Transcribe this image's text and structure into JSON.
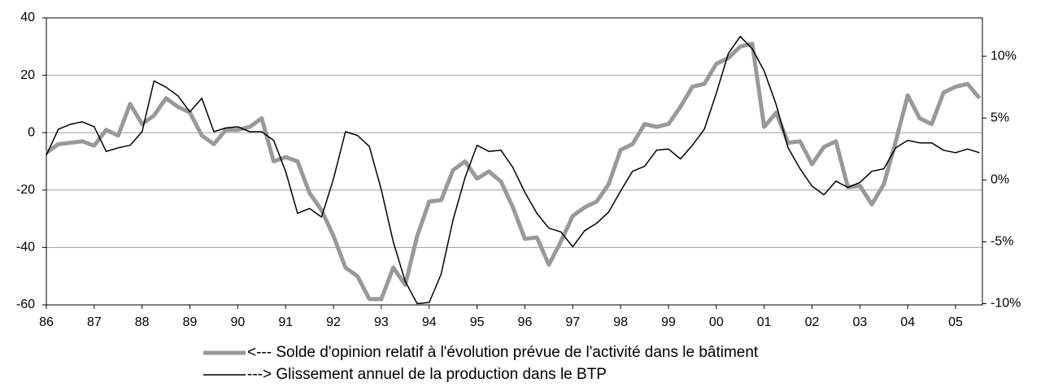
{
  "chart_data": {
    "type": "line",
    "x": [
      1986,
      1986.25,
      1986.5,
      1986.75,
      1987,
      1987.25,
      1987.5,
      1987.75,
      1988,
      1988.25,
      1988.5,
      1988.75,
      1989,
      1989.25,
      1989.5,
      1989.75,
      1990,
      1990.25,
      1990.5,
      1990.75,
      1991,
      1991.25,
      1991.5,
      1991.75,
      1992,
      1992.25,
      1992.5,
      1992.75,
      1993,
      1993.25,
      1993.5,
      1993.75,
      1994,
      1994.25,
      1994.5,
      1994.75,
      1995,
      1995.25,
      1995.5,
      1995.75,
      1996,
      1996.25,
      1996.5,
      1996.75,
      1997,
      1997.25,
      1997.5,
      1997.75,
      1998,
      1998.25,
      1998.5,
      1998.75,
      1999,
      1999.25,
      1999.5,
      1999.75,
      2000,
      2000.25,
      2000.5,
      2000.75,
      2001,
      2001.25,
      2001.5,
      2001.75,
      2002,
      2002.25,
      2002.5,
      2002.75,
      2003,
      2003.25,
      2003.5,
      2003.75,
      2004,
      2004.25,
      2004.5,
      2004.75,
      2005,
      2005.25,
      2005.5
    ],
    "series": [
      {
        "name": "<--- Solde d'opinion relatif à l'évolution prévue de l'activité dans le bâtiment",
        "color": "#999999",
        "axis": "y",
        "values": [
          -7,
          -4,
          -3.5,
          -3,
          -4.5,
          1,
          -1,
          10,
          3,
          6,
          12,
          9,
          7,
          -1,
          -4,
          1,
          1,
          2,
          5,
          -10,
          -8.5,
          -10,
          -21,
          -27,
          -36,
          -47,
          -50,
          -58,
          -58,
          -47,
          -53,
          -36,
          -24,
          -23.5,
          -13,
          -10,
          -16,
          -13.5,
          -17,
          -26,
          -37,
          -36.5,
          -46,
          -38,
          -29,
          -26,
          -24,
          -18,
          -6,
          -4,
          3,
          2,
          3,
          9,
          16,
          17,
          24,
          26,
          30,
          31,
          2,
          7,
          -3.5,
          -3,
          -11,
          -5,
          -3,
          -19,
          -18.5,
          -25,
          -18,
          -3,
          13,
          5,
          3,
          14,
          16,
          17,
          12
        ]
      },
      {
        "name": "---> Glissement annuel de la production dans le BTP",
        "color": "#000000",
        "axis": "y2",
        "values": [
          2.0,
          4.1,
          4.5,
          4.7,
          4.3,
          2.3,
          2.6,
          2.8,
          3.9,
          8.0,
          7.5,
          6.8,
          5.5,
          6.6,
          3.9,
          4.2,
          4.3,
          3.9,
          3.9,
          3.2,
          0.7,
          -2.7,
          -2.3,
          -3.0,
          0.1,
          3.9,
          3.6,
          2.7,
          -0.8,
          -5.0,
          -8.2,
          -10.0,
          -9.9,
          -7.6,
          -3.2,
          0.2,
          2.8,
          2.3,
          2.4,
          1.0,
          -1.0,
          -2.7,
          -3.9,
          -4.2,
          -5.4,
          -4.1,
          -3.5,
          -2.6,
          -0.9,
          0.7,
          1.1,
          2.4,
          2.5,
          1.7,
          2.8,
          4.1,
          7.0,
          10.2,
          11.6,
          10.6,
          8.8,
          6.1,
          2.6,
          0.9,
          -0.5,
          -1.2,
          -0.1,
          -0.6,
          -0.2,
          0.7,
          0.9,
          2.6,
          3.2,
          3.0,
          3.0,
          2.4,
          2.2,
          2.5,
          2.2
        ]
      }
    ],
    "xlim": [
      1986,
      2005.56
    ],
    "xticks": [
      {
        "value": 1986,
        "label": "86"
      },
      {
        "value": 1987,
        "label": "87"
      },
      {
        "value": 1988,
        "label": "88"
      },
      {
        "value": 1989,
        "label": "89"
      },
      {
        "value": 1990,
        "label": "90"
      },
      {
        "value": 1991,
        "label": "91"
      },
      {
        "value": 1992,
        "label": "92"
      },
      {
        "value": 1993,
        "label": "93"
      },
      {
        "value": 1994,
        "label": "94"
      },
      {
        "value": 1995,
        "label": "95"
      },
      {
        "value": 1996,
        "label": "96"
      },
      {
        "value": 1997,
        "label": "97"
      },
      {
        "value": 1998,
        "label": "98"
      },
      {
        "value": 1999,
        "label": "99"
      },
      {
        "value": 2000,
        "label": "00"
      },
      {
        "value": 2001,
        "label": "01"
      },
      {
        "value": 2002,
        "label": "02"
      },
      {
        "value": 2003,
        "label": "03"
      },
      {
        "value": 2004,
        "label": "04"
      },
      {
        "value": 2005,
        "label": "05"
      }
    ],
    "ylim": [
      -60,
      40
    ],
    "yticks": [
      -60,
      -40,
      -20,
      0,
      20,
      40
    ],
    "y2lim": [
      -10.1,
      13.1
    ],
    "y2ticks": [
      {
        "value": -10,
        "label": "-10%"
      },
      {
        "value": -5,
        "label": "-5%"
      },
      {
        "value": 0,
        "label": "0%"
      },
      {
        "value": 5,
        "label": "5%"
      },
      {
        "value": 10,
        "label": "10%"
      }
    ],
    "grid": true,
    "legend": "bottom"
  }
}
